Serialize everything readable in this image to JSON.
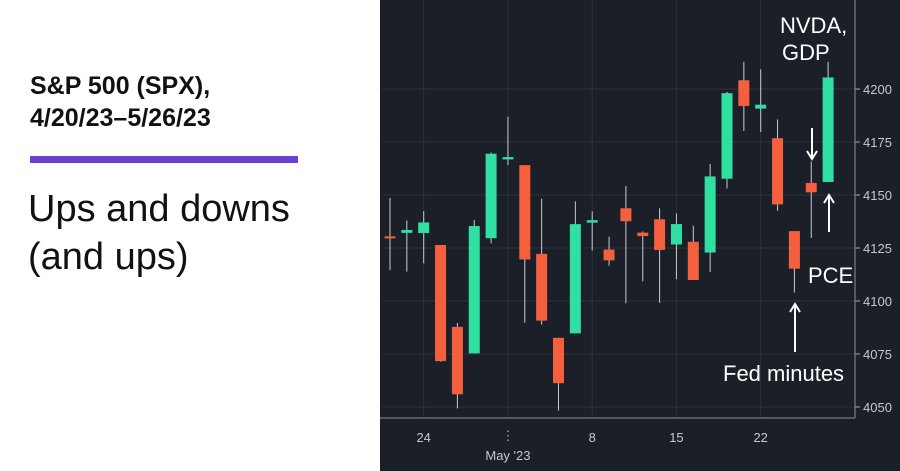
{
  "chart_data": {
    "type": "candlestick",
    "title": [
      "S&P 500 (SPX),",
      "4/20/23–5/26/23"
    ],
    "subtitle": [
      "Ups and downs",
      "(and ups)"
    ],
    "categories": [
      null,
      null,
      "24",
      null,
      null,
      null,
      null,
      "May '23",
      null,
      null,
      null,
      null,
      "8",
      null,
      null,
      null,
      null,
      "15",
      null,
      null,
      null,
      null,
      "22",
      null,
      null,
      null,
      null
    ],
    "open": [
      4130.48,
      4132.14,
      4132.07,
      4126.43,
      4087.78,
      4075.29,
      4129.63,
      4166.79,
      4164.1,
      4122.25,
      4082.61,
      4084.73,
      4136.98,
      4124.25,
      4143.74,
      4132.24,
      4138.54,
      4126.65,
      4127.95,
      4122.85,
      4157.68,
      4204.15,
      4190.78,
      4176.8,
      4132.96,
      4155.71,
      4156.16
    ],
    "high": [
      4148.57,
      4138.02,
      4142.41,
      4126.43,
      4089.67,
      4138.24,
      4170.06,
      4186.92,
      4164.1,
      4148.3,
      4082.61,
      4147.02,
      4142.3,
      4130.35,
      4154.28,
      4132.8,
      4143.74,
      4141.25,
      4135.54,
      4164.67,
      4198.65,
      4212.91,
      4209.22,
      4185.68,
      4132.96,
      4165.74,
      4212.87
    ],
    "low": [
      4114.57,
      4113.86,
      4117.77,
      4071.38,
      4049.35,
      4075.29,
      4127.18,
      4164.12,
      4089.72,
      4088.86,
      4048.28,
      4084.73,
      4123.81,
      4116.65,
      4098.92,
      4109.29,
      4099.12,
      4110.27,
      4109.86,
      4113.62,
      4153.14,
      4180.2,
      4179.68,
      4142.54,
      4103.98,
      4129.73,
      4156.16
    ],
    "close": [
      4129.79,
      4133.52,
      4137.04,
      4071.63,
      4055.99,
      4135.35,
      4169.48,
      4167.87,
      4119.58,
      4090.75,
      4061.22,
      4136.25,
      4138.12,
      4119.17,
      4137.64,
      4130.62,
      4124.08,
      4136.28,
      4109.9,
      4158.77,
      4198.05,
      4191.98,
      4192.63,
      4145.58,
      4115.24,
      4151.28,
      4205.45
    ],
    "up_color": "#2fe0a2",
    "down_color": "#f4603d",
    "background": "#1b1f27",
    "ylim": [
      4044.8,
      4242
    ],
    "yticks": [
      4050,
      4075,
      4100,
      4125,
      4150,
      4175,
      4200
    ],
    "grid": true,
    "annotations": [
      {
        "lines": [
          "NVDA,",
          "GDP"
        ]
      },
      {
        "lines": [
          "PCE"
        ]
      },
      {
        "lines": [
          "Fed minutes"
        ]
      }
    ]
  }
}
